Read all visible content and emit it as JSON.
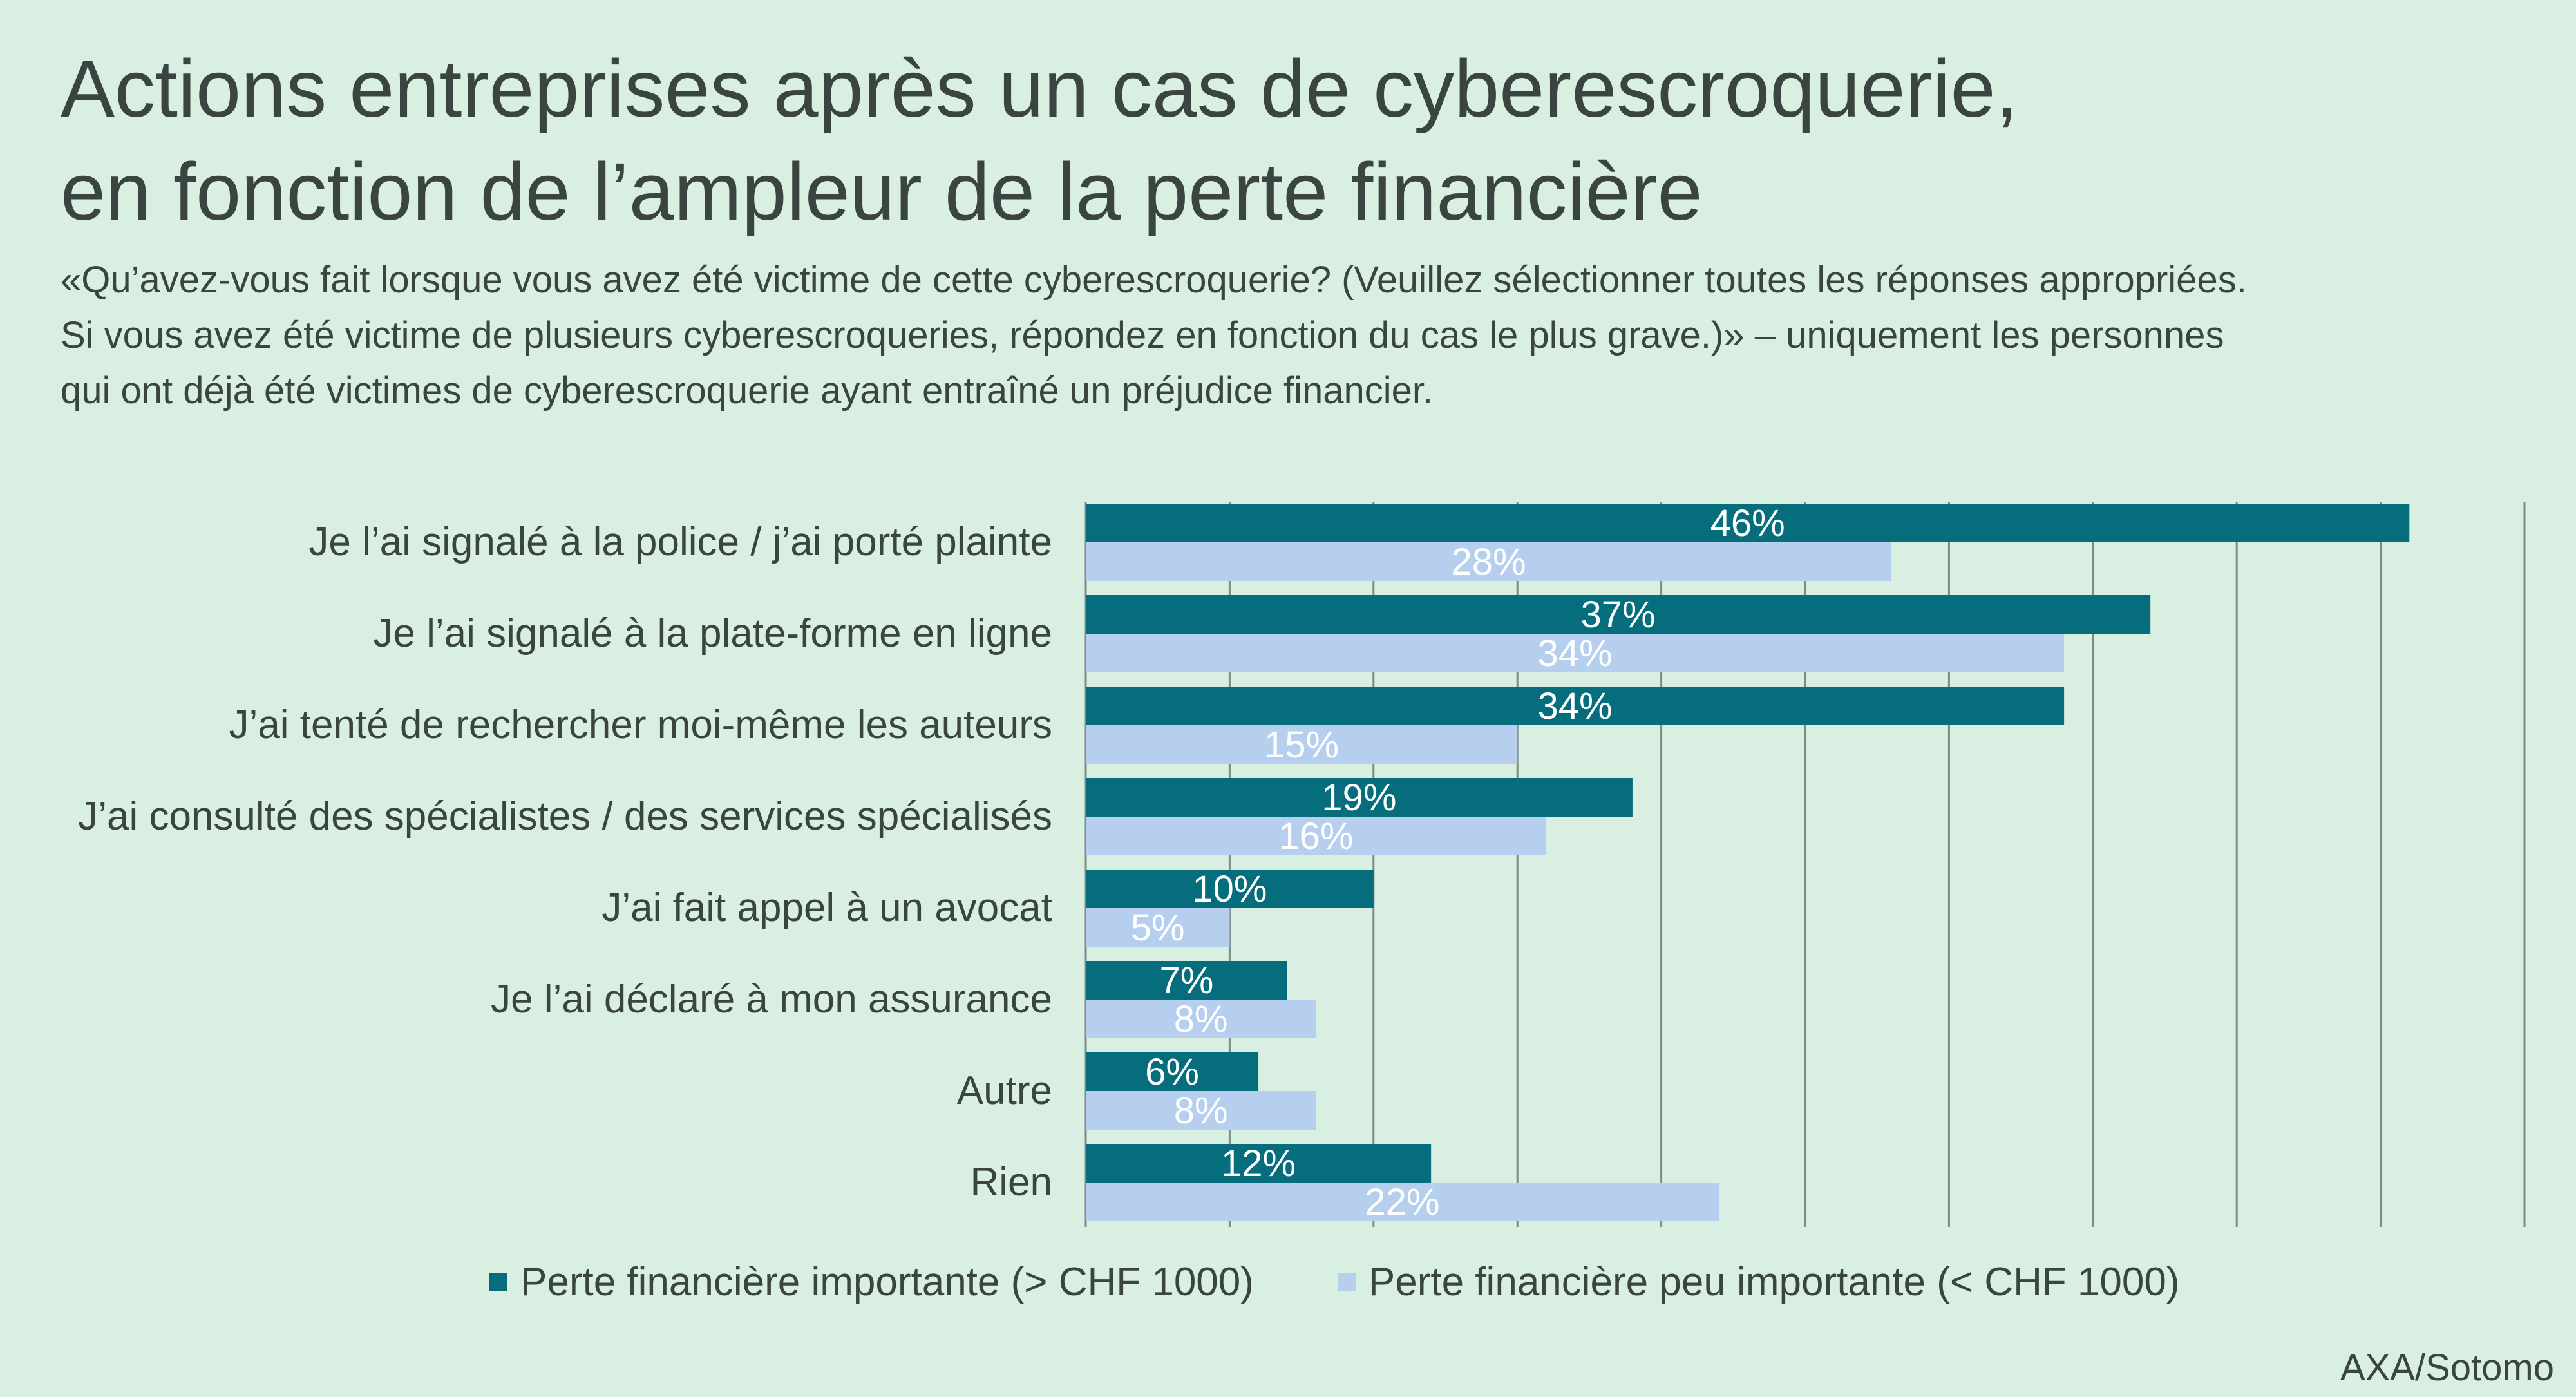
{
  "title_lines": [
    "Actions entreprises après un cas de cyberescroquerie,",
    "en fonction de l’ampleur de la perte financière"
  ],
  "subtitle_lines": [
    "«Qu’avez-vous fait lorsque vous avez été victime de cette cyberescroquerie? (Veuillez sélectionner toutes les réponses appropriées.",
    "Si vous avez été victime de plusieurs cyberescroqueries, répondez en fonction du cas le plus grave.)» – uniquement les personnes",
    "qui ont déjà été victimes de cyberescroquerie ayant entraîné un préjudice financier."
  ],
  "source": "AXA/Sotomo",
  "colors": {
    "background": "#d9efe1",
    "series_major": "#056d7b",
    "series_minor": "#b6cfee",
    "gridline": "#7d8a84",
    "text": "#3a4440"
  },
  "chart_data": {
    "type": "bar",
    "orientation": "horizontal",
    "categories": [
      "Je l’ai signalé à la police / j’ai porté plainte",
      "Je l’ai signalé à la plate-forme en ligne",
      "J’ai tenté de rechercher moi-même les auteurs",
      "J’ai consulté des spécialistes / des services spécialisés",
      "J’ai fait appel à un avocat",
      "Je l’ai déclaré à mon assurance",
      "Autre",
      "Rien"
    ],
    "series": [
      {
        "name": "Perte financière importante (> CHF 1000)",
        "values": [
          46,
          37,
          34,
          19,
          10,
          7,
          6,
          12
        ],
        "labels": [
          "46%",
          "37%",
          "34%",
          "19%",
          "10%",
          "7%",
          "6%",
          "12%"
        ]
      },
      {
        "name": "Perte financière peu importante (< CHF 1000)",
        "values": [
          28,
          34,
          15,
          16,
          5,
          8,
          8,
          22
        ],
        "labels": [
          "28%",
          "34%",
          "15%",
          "16%",
          "5%",
          "8%",
          "8%",
          "22%"
        ]
      }
    ],
    "xlim": [
      0,
      50
    ],
    "grid": true,
    "legend_position": "bottom"
  }
}
